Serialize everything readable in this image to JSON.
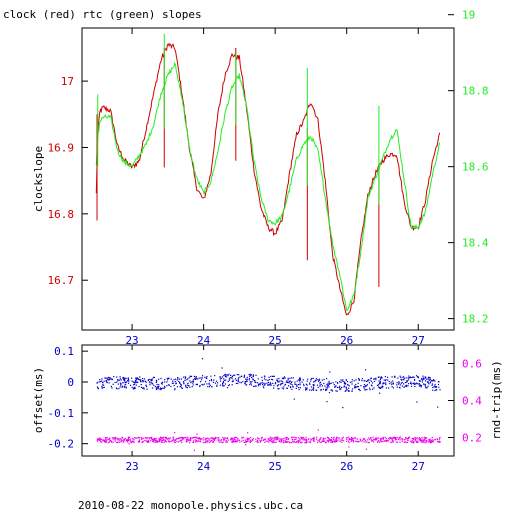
{
  "title": "clock (red) rtc (green) slopes",
  "footer": "2010-08-22  monopole.physics.ubc.ca",
  "colors": {
    "red": "#cc0000",
    "green": "#22ee22",
    "blue": "#0000cc",
    "magenta": "#ee00ee",
    "axis": "#000000"
  },
  "chart_data": [
    {
      "type": "line",
      "title": "clock (red) rtc (green) slopes",
      "xlabel": "",
      "ylabel": "clockslope",
      "y2label": "",
      "xlim": [
        22.3,
        27.5
      ],
      "ylim": [
        16.625,
        17.08
      ],
      "y2lim": [
        18.17,
        18.965
      ],
      "xticks": [
        "23",
        "24",
        "25",
        "26",
        "27"
      ],
      "xtick_values": [
        23,
        24,
        25,
        26,
        27
      ],
      "yticks": [
        "16.7",
        "16.8",
        "16.9",
        "17"
      ],
      "ytick_values": [
        16.7,
        16.8,
        16.9,
        17.0
      ],
      "y2ticks": [
        "18.2",
        "18.4",
        "18.6",
        "18.8",
        "19"
      ],
      "y2tick_values": [
        18.2,
        18.4,
        18.6,
        18.8,
        19.0
      ],
      "grid": false,
      "series": [
        {
          "name": "clock",
          "axis": "left",
          "color": "red",
          "x": [
            22.5,
            22.52,
            22.55,
            22.6,
            22.7,
            22.8,
            22.9,
            23.0,
            23.1,
            23.2,
            23.3,
            23.4,
            23.5,
            23.6,
            23.7,
            23.8,
            23.9,
            24.0,
            24.1,
            24.2,
            24.3,
            24.4,
            24.5,
            24.6,
            24.7,
            24.8,
            24.9,
            25.0,
            25.1,
            25.2,
            25.3,
            25.4,
            25.5,
            25.6,
            25.7,
            25.8,
            25.9,
            26.0,
            26.1,
            26.2,
            26.3,
            26.4,
            26.5,
            26.6,
            26.7,
            26.8,
            26.9,
            27.0,
            27.1,
            27.2,
            27.3
          ],
          "y": [
            16.83,
            16.92,
            16.955,
            16.96,
            16.955,
            16.9,
            16.88,
            16.87,
            16.88,
            16.93,
            16.98,
            17.03,
            17.055,
            17.05,
            16.98,
            16.9,
            16.84,
            16.82,
            16.86,
            16.95,
            17.01,
            17.04,
            17.035,
            16.96,
            16.87,
            16.81,
            16.78,
            16.77,
            16.79,
            16.86,
            16.92,
            16.94,
            16.97,
            16.94,
            16.85,
            16.74,
            16.69,
            16.645,
            16.67,
            16.76,
            16.83,
            16.86,
            16.88,
            16.89,
            16.89,
            16.82,
            16.78,
            16.78,
            16.82,
            16.88,
            16.92
          ]
        },
        {
          "name": "rtc",
          "axis": "right",
          "color": "green",
          "x": [
            22.5,
            22.52,
            22.55,
            22.6,
            22.7,
            22.8,
            22.9,
            23.0,
            23.1,
            23.2,
            23.3,
            23.4,
            23.5,
            23.6,
            23.7,
            23.8,
            23.9,
            24.0,
            24.1,
            24.2,
            24.3,
            24.4,
            24.5,
            24.6,
            24.7,
            24.8,
            24.9,
            25.0,
            25.1,
            25.2,
            25.3,
            25.4,
            25.5,
            25.6,
            25.7,
            25.8,
            25.9,
            26.0,
            26.1,
            26.2,
            26.3,
            26.4,
            26.5,
            26.6,
            26.7,
            26.8,
            26.9,
            27.0,
            27.1,
            27.2,
            27.3
          ],
          "y": [
            18.6,
            18.68,
            18.72,
            18.73,
            18.73,
            18.64,
            18.61,
            18.6,
            18.63,
            18.66,
            18.71,
            18.79,
            18.84,
            18.87,
            18.78,
            18.65,
            18.57,
            18.53,
            18.56,
            18.64,
            18.74,
            18.81,
            18.84,
            18.76,
            18.62,
            18.52,
            18.46,
            18.45,
            18.47,
            18.54,
            18.62,
            18.66,
            18.68,
            18.64,
            18.52,
            18.4,
            18.32,
            18.22,
            18.26,
            18.38,
            18.52,
            18.57,
            18.62,
            18.67,
            18.7,
            18.57,
            18.44,
            18.44,
            18.48,
            18.58,
            18.66
          ]
        }
      ],
      "spikes": [
        {
          "series": "clock",
          "x": 22.51,
          "y_from": 16.79,
          "y_to": 16.95
        },
        {
          "series": "clock",
          "x": 23.45,
          "y_from": 16.87,
          "y_to": 17.05
        },
        {
          "series": "clock",
          "x": 24.45,
          "y_from": 16.88,
          "y_to": 17.05
        },
        {
          "series": "clock",
          "x": 25.45,
          "y_from": 16.73,
          "y_to": 16.93
        },
        {
          "series": "clock",
          "x": 26.45,
          "y_from": 16.69,
          "y_to": 16.87
        },
        {
          "series": "rtc",
          "x": 22.52,
          "y_from": 18.6,
          "y_to": 18.79
        },
        {
          "series": "rtc",
          "x": 23.45,
          "y_from": 18.7,
          "y_to": 18.95
        },
        {
          "series": "rtc",
          "x": 24.45,
          "y_from": 18.71,
          "y_to": 18.9
        },
        {
          "series": "rtc",
          "x": 25.45,
          "y_from": 18.55,
          "y_to": 18.86
        },
        {
          "series": "rtc",
          "x": 26.45,
          "y_from": 18.5,
          "y_to": 18.76
        }
      ]
    },
    {
      "type": "scatter",
      "title": "",
      "xlabel": "",
      "ylabel": "offset(ms)",
      "y2label": "rnd-trip(ms)",
      "xlim": [
        22.3,
        27.5
      ],
      "ylim": [
        -0.24,
        0.12
      ],
      "y2lim": [
        0.1,
        0.7
      ],
      "xticks": [
        "23",
        "24",
        "25",
        "26",
        "27"
      ],
      "xtick_values": [
        23,
        24,
        25,
        26,
        27
      ],
      "yticks": [
        "0.1",
        "0",
        "-0.1",
        "-0.2"
      ],
      "ytick_values": [
        0.1,
        0.0,
        -0.1,
        -0.2
      ],
      "y2ticks": [
        "0.2",
        "0.4",
        "0.6"
      ],
      "y2tick_values": [
        0.2,
        0.4,
        0.6
      ],
      "grid": false,
      "series": [
        {
          "name": "offset",
          "axis": "left",
          "color": "blue",
          "x_range": [
            22.5,
            27.3
          ],
          "x_ctrl": [
            22.5,
            23.0,
            23.5,
            24.0,
            24.5,
            25.0,
            25.5,
            26.0,
            26.5,
            27.0,
            27.3
          ],
          "y_ctrl": [
            0.0,
            0.0,
            -0.005,
            0.005,
            0.01,
            0.0,
            -0.005,
            -0.01,
            0.0,
            0.005,
            -0.01
          ],
          "spread": 0.02
        },
        {
          "name": "rnd-trip",
          "axis": "right",
          "color": "magenta",
          "x_range": [
            22.5,
            27.3
          ],
          "x_ctrl": [
            22.5,
            27.3
          ],
          "y_ctrl": [
            0.19,
            0.19
          ],
          "spread": 0.015
        }
      ]
    }
  ]
}
